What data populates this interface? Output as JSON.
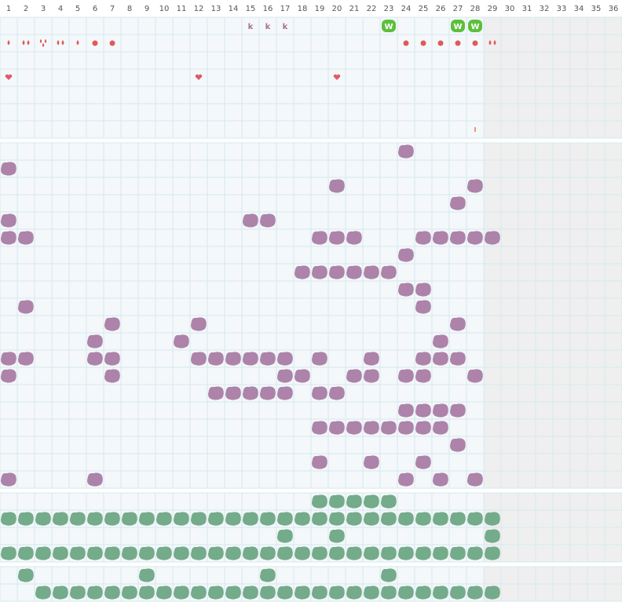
{
  "tracker": {
    "days": [
      1,
      2,
      3,
      4,
      5,
      6,
      7,
      8,
      9,
      10,
      11,
      12,
      13,
      14,
      15,
      16,
      17,
      18,
      19,
      20,
      21,
      22,
      23,
      24,
      25,
      26,
      27,
      28,
      29,
      30,
      31,
      32,
      33,
      34,
      35,
      36
    ],
    "last_day": 28,
    "letters": [
      {
        "label": "k",
        "color": "#a8708f",
        "days": [
          15,
          16,
          17
        ]
      },
      {
        "label": "W",
        "color": "#5cbf3c",
        "days": [
          23,
          27,
          28
        ]
      }
    ],
    "drops": [
      {
        "day": 1,
        "count": 1
      },
      {
        "day": 2,
        "count": 2
      },
      {
        "day": 3,
        "count": 3
      },
      {
        "day": 4,
        "count": 2
      },
      {
        "day": 5,
        "count": 1
      },
      {
        "day": 29,
        "count": 2
      }
    ],
    "dots": [
      6,
      7,
      24,
      25,
      26,
      27,
      28
    ],
    "hearts": [
      1,
      12,
      20
    ],
    "ticks": [
      28
    ],
    "sections": [
      {
        "color": "#ad83aa",
        "rows": [
          [
            24
          ],
          [
            1
          ],
          [
            20,
            28
          ],
          [
            27
          ],
          [
            1,
            15,
            16
          ],
          [
            1,
            2,
            19,
            20,
            21,
            25,
            26,
            27,
            28,
            29
          ],
          [
            24
          ],
          [
            18,
            19,
            20,
            21,
            22,
            23
          ],
          [
            24,
            25
          ],
          [
            2,
            25
          ],
          [
            7,
            12,
            27
          ],
          [
            6,
            11,
            26
          ],
          [
            1,
            2,
            6,
            7,
            12,
            13,
            14,
            15,
            16,
            17,
            19,
            22,
            25,
            26,
            27
          ],
          [
            1,
            7,
            17,
            18,
            21,
            22,
            24,
            25,
            28
          ],
          [
            13,
            14,
            15,
            16,
            17,
            19,
            20
          ],
          [
            24,
            25,
            26,
            27
          ],
          [
            19,
            20,
            21,
            22,
            23,
            24,
            25,
            26
          ],
          [
            27
          ],
          [
            19,
            22,
            25
          ],
          [
            1,
            6,
            24,
            26,
            28
          ]
        ]
      },
      {
        "color": "#74ab8a",
        "rows": [
          [
            19,
            20,
            21,
            22,
            23
          ],
          [
            1,
            2,
            3,
            4,
            5,
            6,
            7,
            8,
            9,
            10,
            11,
            12,
            13,
            14,
            15,
            16,
            17,
            18,
            19,
            20,
            21,
            22,
            23,
            24,
            25,
            26,
            27,
            28,
            29
          ],
          [
            17,
            20,
            29
          ],
          [
            1,
            2,
            3,
            4,
            5,
            6,
            7,
            8,
            9,
            10,
            11,
            12,
            13,
            14,
            15,
            16,
            17,
            18,
            19,
            20,
            21,
            22,
            23,
            24,
            25,
            26,
            27,
            28,
            29
          ]
        ]
      },
      {
        "color": "#74ab8a",
        "rows": [
          [
            2,
            9,
            16,
            23
          ],
          [
            3,
            4,
            5,
            6,
            7,
            8,
            9,
            10,
            11,
            12,
            13,
            14,
            15,
            16,
            17,
            18,
            19,
            20,
            21,
            22,
            23,
            24,
            25,
            26,
            27,
            28,
            29
          ]
        ]
      }
    ]
  }
}
